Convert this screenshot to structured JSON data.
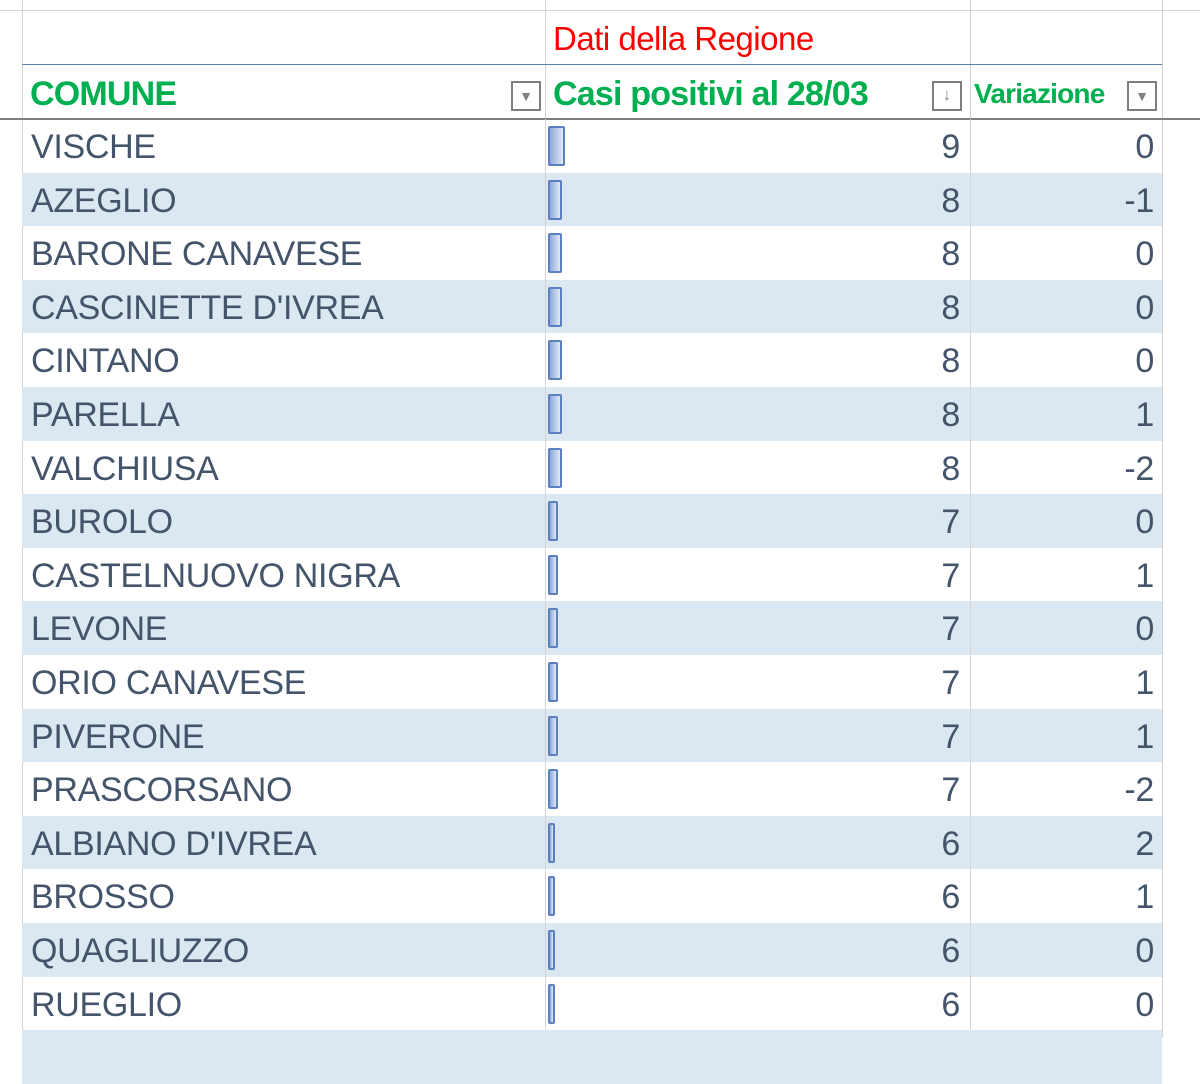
{
  "sheet": {
    "group_title": "Dati della Regione",
    "headers": {
      "comune": "COMUNE",
      "casi": "Casi positivi al 28/03",
      "variazione": "Variazione"
    },
    "colors": {
      "title": "#ff0000",
      "header": "#00b050",
      "band": "#dbe8f1",
      "text": "#44546a",
      "data_bar": "#5b7fbf"
    },
    "rows": [
      {
        "comune": "VISCHE",
        "casi": "9",
        "variazione": "0"
      },
      {
        "comune": "AZEGLIO",
        "casi": "8",
        "variazione": "-1"
      },
      {
        "comune": "BARONE CANAVESE",
        "casi": "8",
        "variazione": "0"
      },
      {
        "comune": "CASCINETTE D'IVREA",
        "casi": "8",
        "variazione": "0"
      },
      {
        "comune": "CINTANO",
        "casi": "8",
        "variazione": "0"
      },
      {
        "comune": "PARELLA",
        "casi": "8",
        "variazione": "1"
      },
      {
        "comune": "VALCHIUSA",
        "casi": "8",
        "variazione": "-2"
      },
      {
        "comune": "BUROLO",
        "casi": "7",
        "variazione": "0"
      },
      {
        "comune": "CASTELNUOVO NIGRA",
        "casi": "7",
        "variazione": "1"
      },
      {
        "comune": "LEVONE",
        "casi": "7",
        "variazione": "0"
      },
      {
        "comune": "ORIO CANAVESE",
        "casi": "7",
        "variazione": "1"
      },
      {
        "comune": "PIVERONE",
        "casi": "7",
        "variazione": "1"
      },
      {
        "comune": "PRASCORSANO",
        "casi": "7",
        "variazione": "-2"
      },
      {
        "comune": "ALBIANO D'IVREA",
        "casi": "6",
        "variazione": "2"
      },
      {
        "comune": "BROSSO",
        "casi": "6",
        "variazione": "1"
      },
      {
        "comune": "QUAGLIUZZO",
        "casi": "6",
        "variazione": "0"
      },
      {
        "comune": "RUEGLIO",
        "casi": "6",
        "variazione": "0"
      }
    ]
  }
}
